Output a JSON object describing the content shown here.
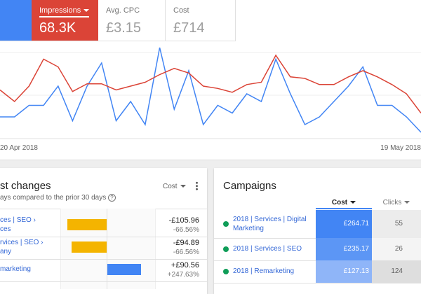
{
  "tiles": [
    {
      "label": "Impressions",
      "value": "68.3K"
    },
    {
      "label": "Avg. CPC",
      "value": "£3.15"
    },
    {
      "label": "Cost",
      "value": "£714"
    }
  ],
  "chart": {
    "type": "line",
    "x_labels": [
      "20 Apr 2018",
      "19 May 2018"
    ],
    "series": [
      {
        "color": "#4285f4",
        "values": [
          30,
          30,
          45,
          45,
          70,
          25,
          70,
          100,
          25,
          50,
          20,
          120,
          40,
          90,
          20,
          45,
          35,
          60,
          50,
          105,
          60,
          20,
          30,
          50,
          70,
          95,
          45,
          45,
          30,
          10
        ]
      },
      {
        "color": "#db4437",
        "values": [
          65,
          50,
          70,
          105,
          95,
          63,
          73,
          73,
          65,
          70,
          75,
          85,
          93,
          87,
          70,
          67,
          62,
          72,
          75,
          110,
          82,
          80,
          72,
          72,
          82,
          90,
          82,
          72,
          60,
          35
        ]
      }
    ]
  },
  "changes": {
    "title": "st changes",
    "subtitle": "ays compared to the prior 30 days",
    "sort": "Cost",
    "rows": [
      {
        "name": [
          "ces | SEO ›",
          "ces"
        ],
        "amount": -105.96,
        "amount_label": "-£105.96",
        "percent": "-66.56%"
      },
      {
        "name": [
          "rvices | SEO ›",
          "any"
        ],
        "amount": -94.89,
        "amount_label": "-£94.89",
        "percent": "-66.56%"
      },
      {
        "name": [
          "marketing"
        ],
        "amount": 90.56,
        "amount_label": "+£90.56",
        "percent": "+247.63%"
      }
    ]
  },
  "campaigns": {
    "title": "Campaigns",
    "columns": [
      "Cost",
      "Clicks"
    ],
    "rows": [
      {
        "name": "2018 | Services | Digital Marketing",
        "cost": "£264.71",
        "clicks": "55"
      },
      {
        "name": "2018 | Services | SEO",
        "cost": "£235.17",
        "clicks": "26"
      },
      {
        "name": "2018 | Remarketing",
        "cost": "£127.13",
        "clicks": "124"
      }
    ]
  }
}
